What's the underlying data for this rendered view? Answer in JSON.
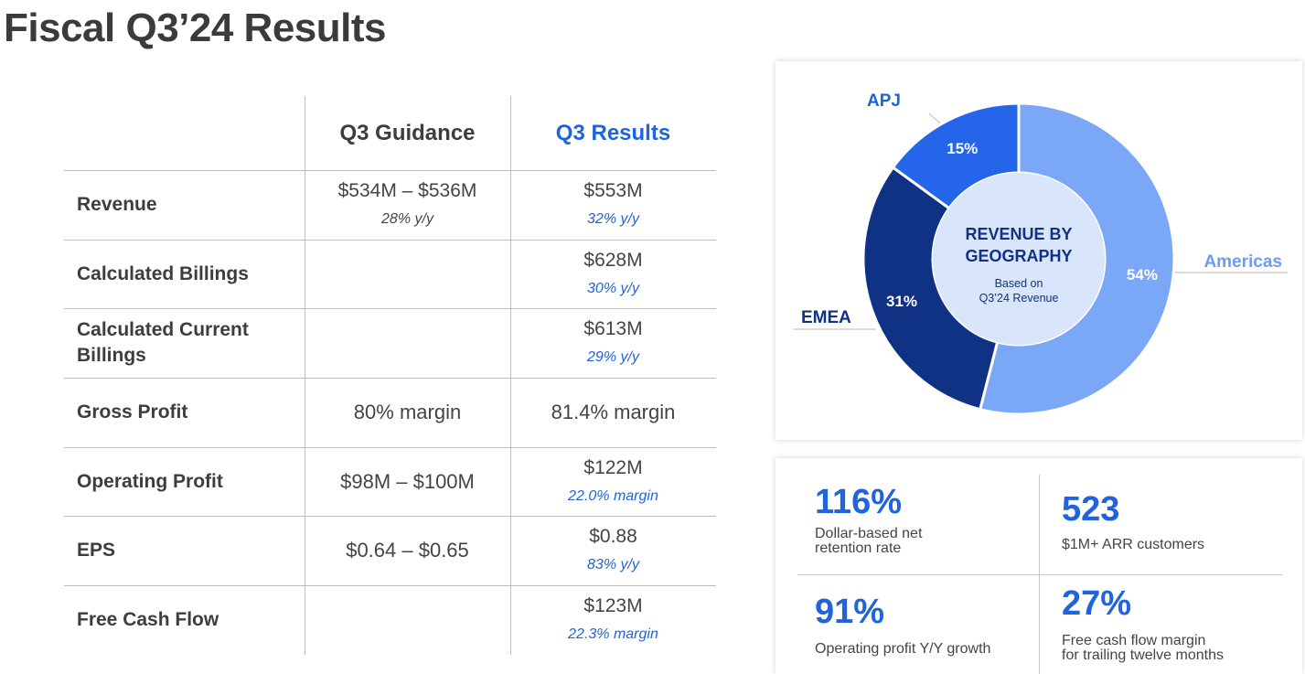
{
  "page": {
    "title": "Fiscal Q3’24 Results"
  },
  "table": {
    "col_guidance": "Q3 Guidance",
    "col_results": "Q3 Results",
    "rows": [
      {
        "label": "Revenue",
        "guidance": "$534M – $536M",
        "guidance_sub": "28% y/y",
        "result": "$553M",
        "result_sub": "32% y/y"
      },
      {
        "label": "Calculated Billings",
        "guidance": "",
        "guidance_sub": "",
        "result": "$628M",
        "result_sub": "30% y/y"
      },
      {
        "label": "Calculated Current Billings",
        "guidance": "",
        "guidance_sub": "",
        "result": "$613M",
        "result_sub": "29% y/y"
      },
      {
        "label": "Gross Profit",
        "guidance": "80% margin",
        "guidance_sub": "",
        "result": "81.4% margin",
        "result_sub": ""
      },
      {
        "label": "Operating Profit",
        "guidance": "$98M – $100M",
        "guidance_sub": "",
        "result": "$122M",
        "result_sub": "22.0% margin"
      },
      {
        "label": "EPS",
        "guidance": "$0.64 – $0.65",
        "guidance_sub": "",
        "result": "$0.88",
        "result_sub": "83% y/y"
      },
      {
        "label": "Free Cash Flow",
        "guidance": "",
        "guidance_sub": "",
        "result": "$123M",
        "result_sub": "22.3% margin"
      }
    ]
  },
  "chart_data": {
    "type": "pie",
    "title": "REVENUE BY GEOGRAPHY",
    "subtitle": "Based on Q3’24 Revenue",
    "center_title_lines": [
      "REVENUE BY",
      "GEOGRAPHY"
    ],
    "center_sub_lines": [
      "Based on",
      "Q3’24 Revenue"
    ],
    "categories": [
      "Americas",
      "EMEA",
      "APJ"
    ],
    "values": [
      54,
      31,
      15
    ],
    "value_labels": [
      "54%",
      "31%",
      "15%"
    ],
    "colors": [
      "#7ba7f7",
      "#0f3285",
      "#2465e9"
    ],
    "label_colors": [
      "#6c9cf2",
      "#0f3285",
      "#1f64dc"
    ],
    "center_fill": "#d9e5fb"
  },
  "kpis": [
    {
      "value": "116%",
      "label_lines": [
        "Dollar-based net",
        "retention rate"
      ]
    },
    {
      "value": "523",
      "label_lines": [
        "$1M+ ARR customers"
      ]
    },
    {
      "value": "91%",
      "label_lines": [
        "Operating profit Y/Y growth"
      ]
    },
    {
      "value": "27%",
      "label_lines": [
        "Free cash flow margin",
        "for trailing twelve months"
      ]
    }
  ]
}
